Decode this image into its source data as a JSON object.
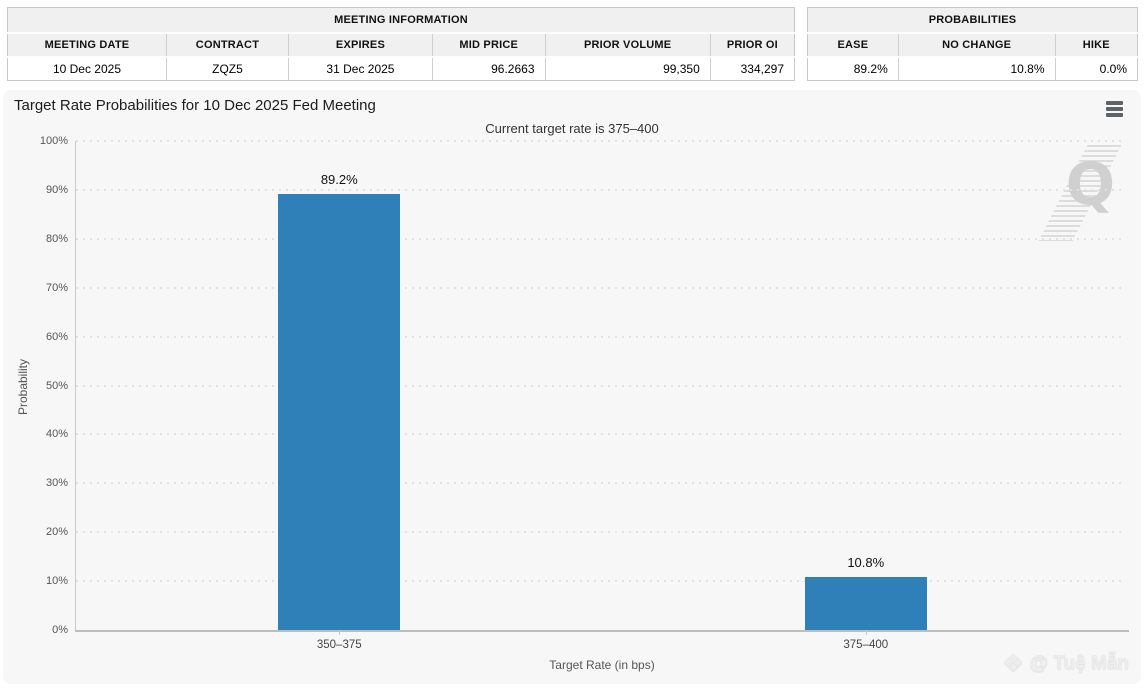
{
  "header": {
    "meeting_info": {
      "title": "MEETING INFORMATION",
      "columns": [
        "MEETING DATE",
        "CONTRACT",
        "EXPIRES",
        "MID PRICE",
        "PRIOR VOLUME",
        "PRIOR OI"
      ],
      "values": [
        "10 Dec 2025",
        "ZQZ5",
        "31 Dec 2025",
        "96.2663",
        "99,350",
        "334,297"
      ]
    },
    "probabilities": {
      "title": "PROBABILITIES",
      "columns": [
        "EASE",
        "NO CHANGE",
        "HIKE"
      ],
      "values": [
        "89.2%",
        "10.8%",
        "0.0%"
      ]
    }
  },
  "chart": {
    "title": "Target Rate Probabilities for 10 Dec 2025 Fed Meeting",
    "subtitle": "Current target rate is 375–400",
    "watermark_letter": "Q",
    "credit": "@ Tuệ Mẫn"
  },
  "icons": {
    "credit_diamond": "❖"
  },
  "chart_data": {
    "type": "bar",
    "title": "Target Rate Probabilities for 10 Dec 2025 Fed Meeting",
    "subtitle": "Current target rate is 375–400",
    "categories": [
      "350–375",
      "375–400"
    ],
    "values": [
      89.2,
      10.8
    ],
    "data_labels": [
      "89.2%",
      "10.8%"
    ],
    "xlabel": "Target Rate (in bps)",
    "ylabel": "Probability",
    "ylim": [
      0,
      100
    ],
    "ytick_step": 10,
    "ytick_suffix": "%",
    "bar_color": "#2f80b9",
    "bar_width_pct": 11.6,
    "grid": "dotted horizontal gridlines, light grey",
    "legend": "none",
    "plot_background": "#f7f7f7"
  }
}
